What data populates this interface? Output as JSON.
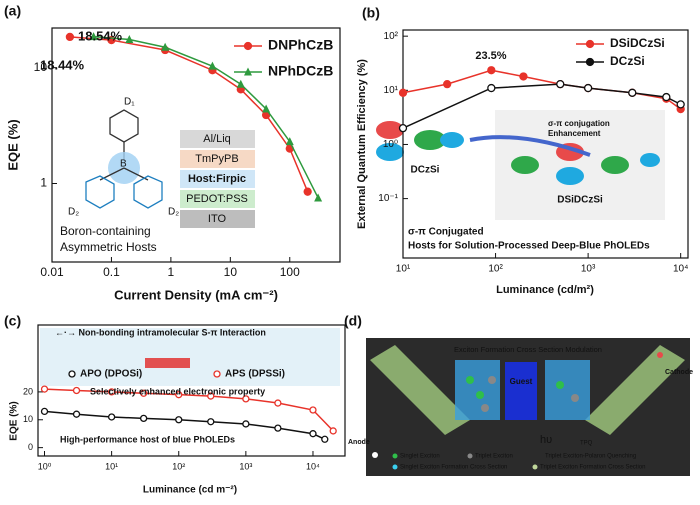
{
  "panel_labels": [
    "(a)",
    "(b)",
    "(c)",
    "(d)"
  ],
  "chart_data": [
    {
      "type": "line",
      "xlabel": "Current Density (mA cm⁻²)",
      "ylabel": "EQE (%)",
      "xscale": "log",
      "yscale": "log",
      "xlim": [
        0.01,
        700
      ],
      "ylim": [
        0.21,
        22
      ],
      "xticks": [
        0.01,
        0.1,
        1,
        10,
        100
      ],
      "yticks": [
        1,
        10
      ],
      "legend": "upper right",
      "series": [
        {
          "name": "DNPhCzB",
          "color": "#e8332a",
          "marker": "circle",
          "x": [
            0.02,
            0.1,
            0.8,
            5,
            15,
            40,
            100,
            200
          ],
          "values": [
            18.44,
            17.3,
            14.2,
            9.5,
            6.5,
            3.9,
            2.0,
            0.85
          ]
        },
        {
          "name": "NPhDCzB",
          "color": "#2e9a3e",
          "marker": "triangle",
          "x": [
            0.05,
            0.2,
            0.8,
            5,
            15,
            40,
            100,
            300
          ],
          "values": [
            18.54,
            17.5,
            15,
            10.3,
            7.2,
            4.4,
            2.3,
            0.75
          ]
        }
      ],
      "annotations": [
        "18.54%",
        "18.44%",
        "Boron-containing",
        "Asymmetric Hosts",
        "D₁",
        "D₂",
        "D₂",
        "B"
      ],
      "layers": [
        "Al/Liq",
        "TmPyPB",
        "Host:Firpic",
        "PEDOT:PSS",
        "ITO"
      ]
    },
    {
      "type": "line",
      "xlabel": "Luminance (cd/m²)",
      "ylabel": "External Quantum Efficiency (%)",
      "xscale": "log",
      "yscale": "log",
      "xlim": [
        10,
        12000
      ],
      "ylim": [
        0.008,
        130
      ],
      "xticks": [
        {
          "value": 10,
          "label": "10¹"
        },
        {
          "value": 100,
          "label": "10²"
        },
        {
          "value": 1000,
          "label": "10³"
        },
        {
          "value": 10000,
          "label": "10⁴"
        }
      ],
      "yticks": [
        {
          "value": 0.1,
          "label": "10⁻¹"
        },
        {
          "value": 1,
          "label": "10⁰"
        },
        {
          "value": 10,
          "label": "10¹"
        },
        {
          "value": 100,
          "label": "10²"
        }
      ],
      "legend": "upper right",
      "series": [
        {
          "name": "DSiDCzSi",
          "color": "#e8332a",
          "marker": "circle",
          "x": [
            10,
            30,
            90,
            200,
            500,
            1000,
            3000,
            7000,
            10000
          ],
          "values": [
            9,
            13,
            23.5,
            18,
            13,
            11,
            9,
            7,
            4.5
          ]
        },
        {
          "name": "DCzSi",
          "color": "#111111",
          "marker": "circle",
          "x": [
            10,
            90,
            500,
            1000,
            3000,
            7000,
            10000
          ],
          "values": [
            2,
            11,
            13,
            11,
            9,
            7.5,
            5.5
          ]
        }
      ],
      "annotations": [
        "23.5%",
        "σ-π conjugation",
        "Enhancement",
        "DCzSi",
        "DSiDCzSi",
        "σ-π Conjugated",
        "Hosts for Solution-Processed Deep-Blue PhOLEDs"
      ]
    },
    {
      "type": "line",
      "xlabel": "Luminance (cd m⁻²)",
      "ylabel": "EQE (%)",
      "xscale": "log",
      "yscale": "linear",
      "xlim": [
        0.8,
        30000
      ],
      "ylim": [
        -3,
        44
      ],
      "xticks": [
        {
          "value": 1,
          "label": "10⁰"
        },
        {
          "value": 10,
          "label": "10¹"
        },
        {
          "value": 100,
          "label": "10²"
        },
        {
          "value": 1000,
          "label": "10³"
        },
        {
          "value": 10000,
          "label": "10⁴"
        }
      ],
      "yticks": [
        0,
        10,
        20
      ],
      "legend": "upper left",
      "series": [
        {
          "name": "APO (DPOSi)",
          "color": "#111111",
          "marker": "circle",
          "x": [
            1,
            3,
            10,
            30,
            100,
            300,
            1000,
            3000,
            10000,
            15000
          ],
          "values": [
            13,
            12,
            11,
            10.5,
            10,
            9.3,
            8.5,
            7,
            5,
            3
          ]
        },
        {
          "name": "APS (DPSSi)",
          "color": "#e8332a",
          "marker": "circle",
          "x": [
            1,
            3,
            10,
            30,
            100,
            300,
            1000,
            3000,
            10000,
            20000
          ],
          "values": [
            21,
            20.5,
            20,
            19.5,
            19,
            18.5,
            17.5,
            16,
            13.5,
            6
          ]
        }
      ],
      "annotations": [
        "←·→ Non-bonding intramolecular S-π Interaction",
        "Selectively enhanced electronic property",
        "High-performance host of blue PhOLEDs"
      ]
    }
  ],
  "diagram": {
    "title": "Exciton Formation Cross Section Modulation",
    "cathode": "Cathode",
    "anode": "Anode",
    "guest": "Guest",
    "emission": "hυ",
    "quench": "TPQ",
    "legend": [
      "Singlet Exciton",
      "Triplet Exciton",
      "Triplet Exciton-Polaron Quenching",
      "Singlet Exciton Formation Cross Section",
      "Triplet Exciton Formation Cross Section"
    ]
  }
}
